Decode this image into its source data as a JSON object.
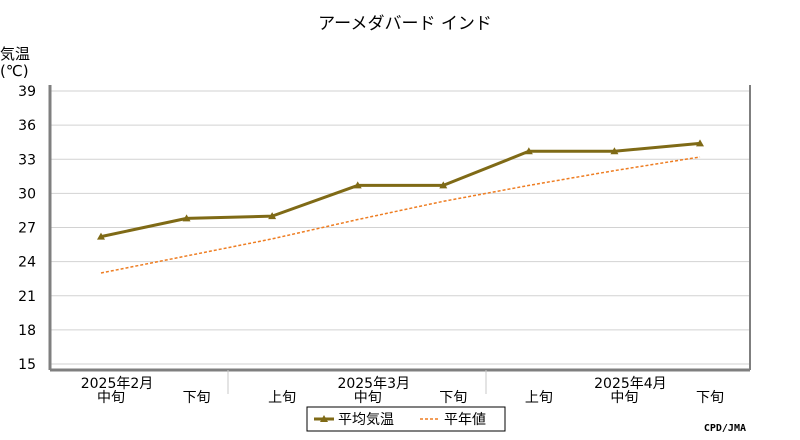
{
  "chart_data": {
    "type": "line",
    "title": "アーメダバード インド",
    "ylabel_line1": "気温",
    "ylabel_line2": "(℃)",
    "ylim": [
      15,
      39
    ],
    "yticks": [
      15,
      18,
      21,
      24,
      27,
      30,
      33,
      36,
      39
    ],
    "categories": [
      "中旬",
      "下旬",
      "上旬",
      "中旬",
      "下旬",
      "上旬",
      "中旬",
      "下旬"
    ],
    "month_labels": [
      {
        "label": "2025年2月",
        "index": 0
      },
      {
        "label": "2025年3月",
        "index": 3
      },
      {
        "label": "2025年4月",
        "index": 6
      }
    ],
    "series": [
      {
        "name": "平均気温",
        "values": [
          26.2,
          27.8,
          28.0,
          30.7,
          30.7,
          33.7,
          33.7,
          34.4
        ],
        "color": "#7f6a16",
        "style": "solid",
        "marker": "triangle"
      },
      {
        "name": "平年値",
        "values": [
          23.0,
          24.5,
          26.0,
          27.7,
          29.3,
          30.7,
          32.0,
          33.2
        ],
        "color": "#ee7d22",
        "style": "dotted"
      }
    ],
    "grid": true,
    "legend_position": "bottom-center",
    "source": "CPD/JMA"
  }
}
